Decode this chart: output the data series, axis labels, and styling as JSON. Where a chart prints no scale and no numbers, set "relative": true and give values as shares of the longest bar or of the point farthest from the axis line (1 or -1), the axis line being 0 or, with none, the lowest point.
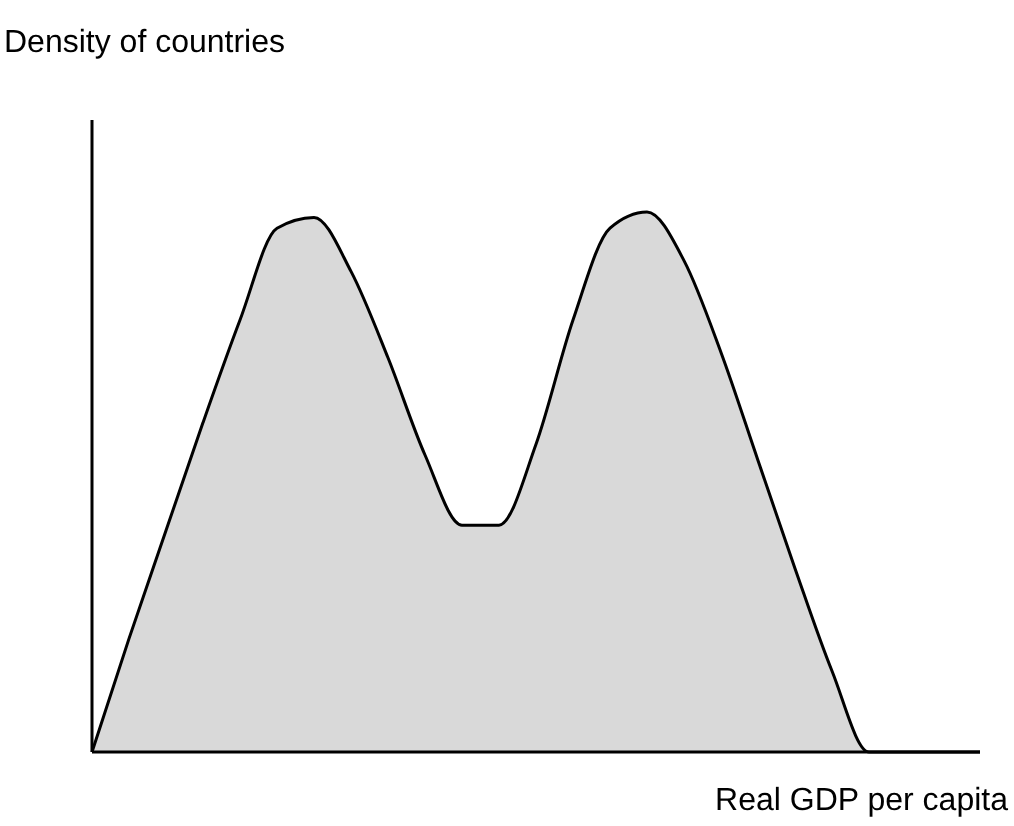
{
  "chart_data": {
    "type": "area",
    "relative": true,
    "ylabel": "Density of countries",
    "xlabel": "Real GDP per capita",
    "color": "#d9d9d9",
    "categories": [
      null,
      null,
      null,
      null,
      null,
      null,
      null,
      null,
      null,
      null,
      null,
      null,
      null,
      null,
      null,
      null,
      null,
      null,
      null,
      null,
      null,
      null,
      null,
      null,
      null
    ],
    "values": [
      0,
      0.21,
      0.41,
      0.61,
      0.8,
      0.97,
      0.99,
      0.89,
      0.73,
      0.55,
      0.42,
      0.42,
      0.57,
      0.8,
      0.97,
      1,
      0.91,
      0.74,
      0.54,
      0.34,
      0.15,
      0,
      0,
      0,
      0
    ]
  }
}
